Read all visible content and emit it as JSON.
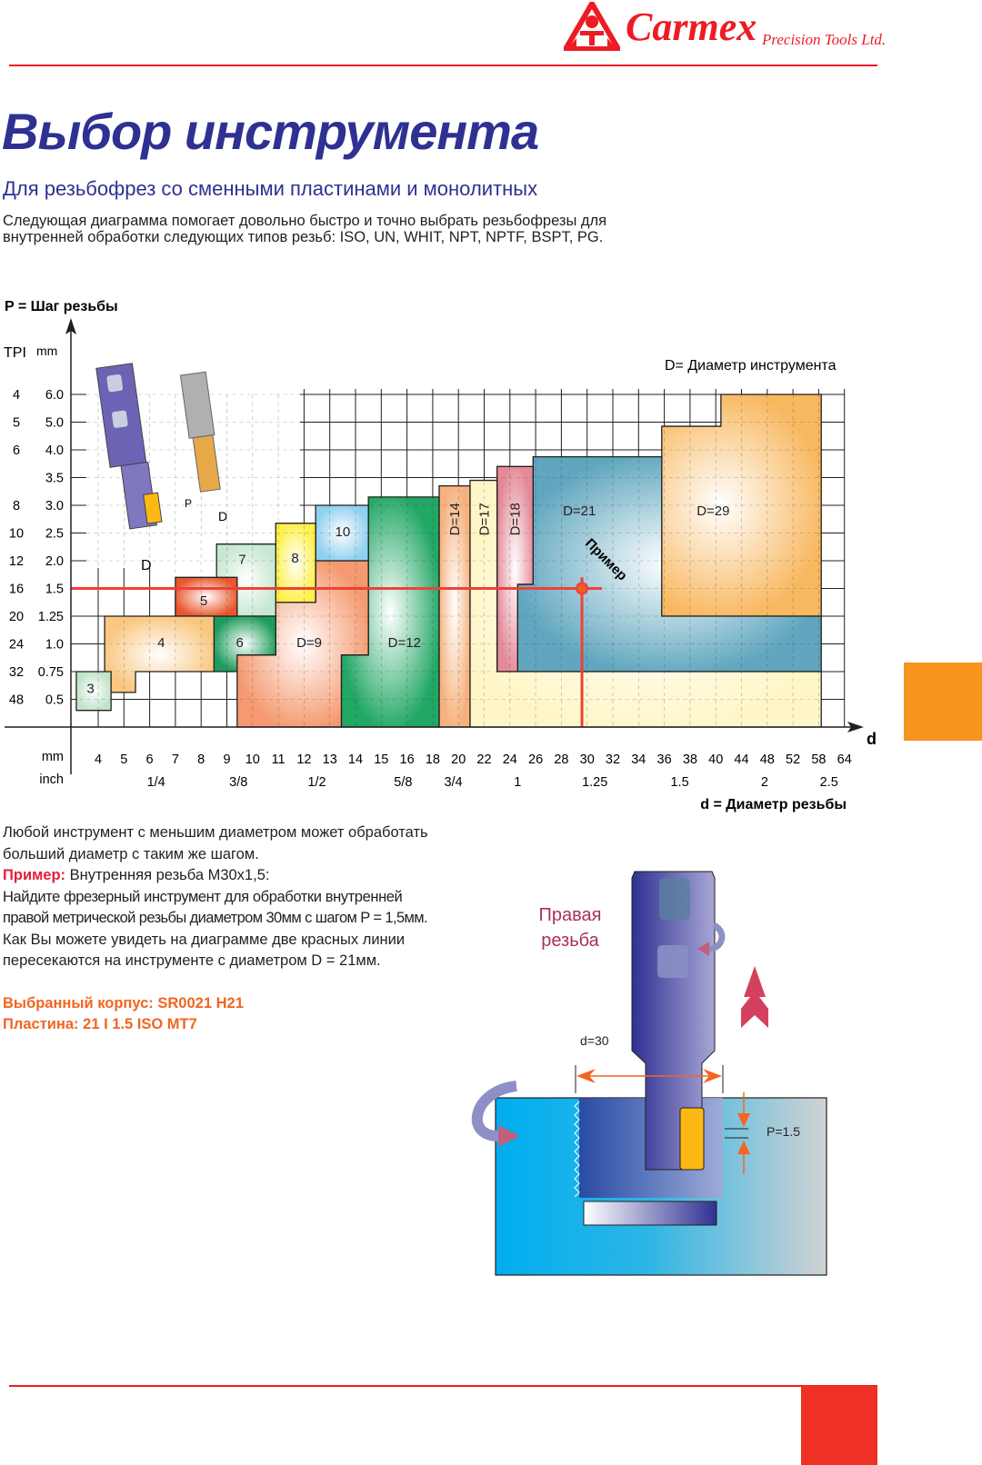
{
  "header": {
    "brand": "Carmex",
    "brand_sub": "Precision Tools Ltd.",
    "accent_color": "#ed1c24"
  },
  "page": {
    "title": "Выбор инструмента",
    "subtitle": "Для резьбофрез со сменными пластинами и монолитных",
    "description": [
      "Следующая диаграмма помогает довольно быстро и точно выбрать резьбофрезы для",
      "внутренней обработки следующих типов резьб: ISO, UN, WHIT, NPT, NPTF, BSPT, PG."
    ],
    "title_color": "#2e3192",
    "side_tab_color": "#f7941d",
    "footer_block_color": "#ee3124"
  },
  "chart_data": {
    "type": "step-region",
    "y_title": "P = Шаг резьбы",
    "y_units": [
      "TPI",
      "mm"
    ],
    "y_rows": [
      {
        "tpi": "4",
        "mm": "6.0"
      },
      {
        "tpi": "5",
        "mm": "5.0"
      },
      {
        "tpi": "6",
        "mm": "4.0"
      },
      {
        "tpi": "",
        "mm": "3.5"
      },
      {
        "tpi": "8",
        "mm": "3.0"
      },
      {
        "tpi": "10",
        "mm": "2.5"
      },
      {
        "tpi": "12",
        "mm": "2.0"
      },
      {
        "tpi": "16",
        "mm": "1.5"
      },
      {
        "tpi": "20",
        "mm": "1.25"
      },
      {
        "tpi": "24",
        "mm": "1.0"
      },
      {
        "tpi": "32",
        "mm": "0.75"
      },
      {
        "tpi": "48",
        "mm": "0.5"
      }
    ],
    "x_title": "d = Диаметр резьбы",
    "x_arrow_label": "d",
    "x_units": [
      "mm",
      "inch"
    ],
    "x_mm": [
      "4",
      "5",
      "6",
      "7",
      "8",
      "9",
      "10",
      "11",
      "12",
      "13",
      "14",
      "15",
      "16",
      "18",
      "20",
      "22",
      "24",
      "26",
      "28",
      "30",
      "32",
      "34",
      "36",
      "38",
      "40",
      "44",
      "48",
      "52",
      "58",
      "64"
    ],
    "x_inch": [
      {
        "label": "1/4",
        "at": 2.25
      },
      {
        "label": "3/8",
        "at": 5.45
      },
      {
        "label": "1/2",
        "at": 8.5
      },
      {
        "label": "5/8",
        "at": 11.85
      },
      {
        "label": "3/4",
        "at": 13.8
      },
      {
        "label": "1",
        "at": 16.3
      },
      {
        "label": "1.25",
        "at": 19.3
      },
      {
        "label": "1.5",
        "at": 22.6
      },
      {
        "label": "2",
        "at": 25.9
      },
      {
        "label": "2.5",
        "at": 28.4
      }
    ],
    "legend": "D= Диаметр инструмента",
    "regions": [
      {
        "label": "D=29",
        "color": "#f8b860",
        "vertical": false,
        "label_at": [
          23.9,
          4.2
        ],
        "polygon": [
          [
            24.2,
            0
          ],
          [
            28.1,
            0
          ],
          [
            28.1,
            8
          ],
          [
            20.3,
            8
          ],
          [
            20.3,
            5.7
          ],
          [
            21.9,
            5.7
          ],
          [
            21.9,
            1.15
          ],
          [
            24.2,
            1.15
          ]
        ]
      },
      {
        "label": "D=21",
        "color": "#5fa6be",
        "vertical": false,
        "label_at": [
          18.7,
          4.2
        ],
        "polygon": [
          [
            16.9,
            2.25
          ],
          [
            21.9,
            2.25
          ],
          [
            21.9,
            8
          ],
          [
            28.1,
            8
          ],
          [
            28.1,
            10
          ],
          [
            16.3,
            10
          ],
          [
            16.3,
            6.85
          ],
          [
            16.9,
            6.85
          ]
        ]
      },
      {
        "label": "D=18",
        "color": "#e38a98",
        "vertical": true,
        "label_at": [
          16.2,
          4.5
        ],
        "polygon": [
          [
            15.5,
            2.6
          ],
          [
            16.9,
            2.6
          ],
          [
            16.9,
            6.85
          ],
          [
            16.3,
            6.85
          ],
          [
            16.3,
            10
          ],
          [
            15.5,
            10
          ]
        ]
      },
      {
        "label": "D=17",
        "color": "#fff6c8",
        "vertical": true,
        "label_at": [
          15.0,
          4.5
        ],
        "polygon": [
          [
            14.45,
            3.1
          ],
          [
            15.5,
            3.1
          ],
          [
            15.5,
            10
          ],
          [
            28.1,
            10
          ],
          [
            28.1,
            12
          ],
          [
            14.45,
            12
          ]
        ]
      },
      {
        "label": "D=14",
        "color": "#f6b27e",
        "vertical": true,
        "label_at": [
          13.85,
          4.5
        ],
        "polygon": [
          [
            13.25,
            3.3
          ],
          [
            14.45,
            3.3
          ],
          [
            14.45,
            12
          ],
          [
            13.25,
            12
          ]
        ]
      },
      {
        "label": "D=12",
        "color": "#22a765",
        "vertical": false,
        "label_at": [
          11.9,
          8.95
        ],
        "polygon": [
          [
            10.5,
            3.7
          ],
          [
            13.25,
            3.7
          ],
          [
            13.25,
            12
          ],
          [
            9.45,
            12
          ],
          [
            9.45,
            9.4
          ],
          [
            10.5,
            9.4
          ]
        ]
      },
      {
        "label": "D=9",
        "color": "#f59a70",
        "vertical": false,
        "label_at": [
          8.2,
          8.95
        ],
        "polygon": [
          [
            6.9,
            7.5
          ],
          [
            8.45,
            7.5
          ],
          [
            8.45,
            6
          ],
          [
            10.5,
            6
          ],
          [
            10.5,
            9.4
          ],
          [
            9.45,
            9.4
          ],
          [
            9.45,
            12
          ],
          [
            5.4,
            12
          ],
          [
            5.4,
            9.4
          ],
          [
            6.9,
            9.4
          ]
        ]
      },
      {
        "label": "10",
        "color": "#8fd0f0",
        "vertical": false,
        "label_at": [
          9.5,
          4.95
        ],
        "polygon": [
          [
            8.45,
            4
          ],
          [
            10.5,
            4
          ],
          [
            10.5,
            6
          ],
          [
            8.45,
            6
          ]
        ]
      },
      {
        "label": "8",
        "color": "#fff04a",
        "vertical": false,
        "label_at": [
          7.65,
          5.9
        ],
        "polygon": [
          [
            6.9,
            4.65
          ],
          [
            8.45,
            4.65
          ],
          [
            8.45,
            7.5
          ],
          [
            6.9,
            7.5
          ]
        ]
      },
      {
        "label": "7",
        "color": "#c6e8d0",
        "vertical": false,
        "label_at": [
          5.6,
          5.95
        ],
        "polygon": [
          [
            4.6,
            5.4
          ],
          [
            6.9,
            5.4
          ],
          [
            6.9,
            8
          ],
          [
            4.6,
            8
          ]
        ]
      },
      {
        "label": "6",
        "color": "#1e9c5c",
        "vertical": false,
        "label_at": [
          5.5,
          8.95
        ],
        "polygon": [
          [
            4.5,
            8
          ],
          [
            6.9,
            8
          ],
          [
            6.9,
            9.4
          ],
          [
            5.4,
            9.4
          ],
          [
            5.4,
            10
          ],
          [
            4.5,
            10
          ]
        ]
      },
      {
        "label": "5",
        "color": "#e8572e",
        "vertical": false,
        "label_at": [
          4.1,
          7.45
        ],
        "polygon": [
          [
            3,
            6.6
          ],
          [
            5.4,
            6.6
          ],
          [
            5.4,
            8
          ],
          [
            3,
            8
          ]
        ]
      },
      {
        "label": "4",
        "color": "#f9c77f",
        "vertical": false,
        "label_at": [
          2.45,
          8.95
        ],
        "polygon": [
          [
            0.25,
            8
          ],
          [
            4.5,
            8
          ],
          [
            4.5,
            10
          ],
          [
            1.45,
            10
          ],
          [
            1.45,
            10.75
          ],
          [
            0.25,
            10.75
          ]
        ]
      },
      {
        "label": "3",
        "color": "#bfe3c8",
        "vertical": false,
        "label_at": [
          -0.3,
          10.6
        ],
        "polygon": [
          [
            -0.85,
            10
          ],
          [
            0.5,
            10
          ],
          [
            0.5,
            11.4
          ],
          [
            -0.85,
            11.4
          ]
        ]
      }
    ],
    "example": {
      "label": "Пример",
      "d_mm": "30",
      "p_mm": "1.5",
      "line_color": "#ef4136"
    },
    "tool_sketch_labels": {
      "pitch": "P",
      "diameter": "D"
    }
  },
  "explanation": {
    "lines": [
      "Любой инструмент с меньшим диаметром может обработать",
      "больший диаметр с таким же шагом."
    ],
    "example_label": "Пример:",
    "example_text": "Внутренняя резьба M30x1,5:",
    "steps": [
      "Найдите фрезерный инструмент для обработки внутренней",
      "правой метрической резьбы диаметром 30мм с шагом P = 1,5мм.",
      "Как Вы можете увидеть на диаграмме две красных линии",
      "пересекаются на инструменте с диаметром D = 21мм."
    ],
    "selected_holder": "Выбранный корпус: SR0021 H21",
    "selected_insert": "Пластина: 21 I 1.5 ISO MT7"
  },
  "illustration": {
    "thread_direction": [
      "Правая",
      "резьба"
    ],
    "diameter_label": "d=30",
    "pitch_label": "P=1.5"
  }
}
